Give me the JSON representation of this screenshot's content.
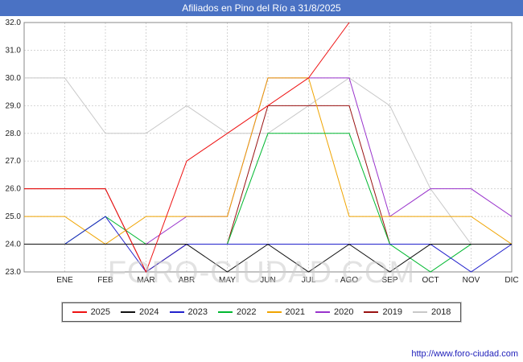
{
  "title": "Afiliados en Pino del Río a 31/8/2025",
  "watermark": "FORO-CIUDAD.COM",
  "footer": {
    "url": "http://www.foro-ciudad.com"
  },
  "colors": {
    "titlebar": "#4a72c4",
    "grid": "#d4d4d4",
    "plot_border": "#888888",
    "axis_text": "#222222",
    "watermark": "#cccccc",
    "url_link": "#2222bb"
  },
  "chart_data": {
    "type": "line",
    "title": "Afiliados en Pino del Río a 31/8/2025",
    "xlabel": "",
    "ylabel": "",
    "categories": [
      "ENE",
      "FEB",
      "MAR",
      "ABR",
      "MAY",
      "JUN",
      "JUL",
      "AGO",
      "SEP",
      "OCT",
      "NOV",
      "DIC"
    ],
    "ylim": [
      23,
      32
    ],
    "ytick_step": 1,
    "grid": true,
    "legend_position": "bottom",
    "series": [
      {
        "name": "2025",
        "color": "#ee1111",
        "values": [
          26,
          26,
          23,
          27,
          28,
          29,
          30,
          32
        ]
      },
      {
        "name": "2024",
        "color": "#111111",
        "values": [
          24,
          24,
          24,
          24,
          23,
          24,
          23,
          24,
          23,
          24,
          24,
          24
        ]
      },
      {
        "name": "2023",
        "color": "#2222cc",
        "values": [
          24,
          25,
          23,
          24,
          24,
          24,
          24,
          24,
          24,
          24,
          23,
          24
        ]
      },
      {
        "name": "2022",
        "color": "#00b830",
        "values": [
          24,
          25,
          24,
          24,
          24,
          28,
          28,
          28,
          24,
          23,
          24,
          24
        ]
      },
      {
        "name": "2021",
        "color": "#f0a400",
        "values": [
          25,
          24,
          25,
          25,
          25,
          30,
          30,
          25,
          25,
          25,
          25,
          24
        ]
      },
      {
        "name": "2020",
        "color": "#9933cc",
        "values": [
          24,
          24,
          24,
          25,
          25,
          30,
          30,
          30,
          25,
          26,
          26,
          25
        ]
      },
      {
        "name": "2019",
        "color": "#991111",
        "values": [
          26,
          26,
          23,
          24,
          24,
          29,
          29,
          29,
          24,
          24,
          24,
          24
        ]
      },
      {
        "name": "2018",
        "color": "#c8c8c8",
        "values": [
          30,
          28,
          28,
          29,
          28,
          28,
          29,
          30,
          29,
          26,
          24,
          24
        ]
      }
    ]
  }
}
